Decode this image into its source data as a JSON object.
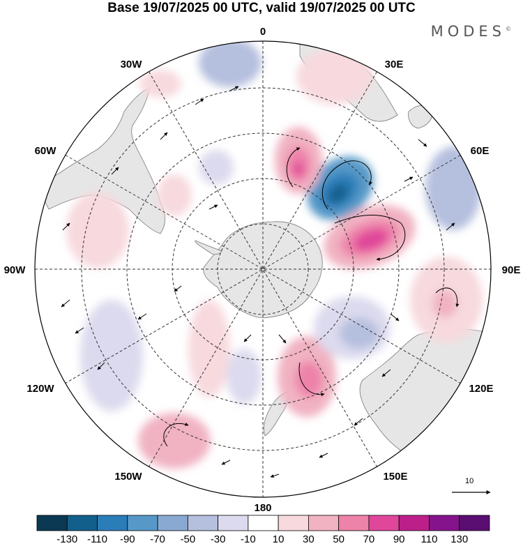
{
  "title": "Base 19/07/2025 00 UTC, valid 19/07/2025 00 UTC",
  "brand": "MODES",
  "brand_mark": "©",
  "longitude_labels": {
    "lon_0": "0",
    "lon_30e": "30E",
    "lon_60e": "60E",
    "lon_90e": "90E",
    "lon_120e": "120E",
    "lon_150e": "150E",
    "lon_180": "180",
    "lon_150w": "150W",
    "lon_120w": "120W",
    "lon_90w": "90W",
    "lon_60w": "60W",
    "lon_30w": "30W"
  },
  "reference_vector": {
    "label": "10",
    "value": 10
  },
  "colorbar": {
    "labels": [
      "-130",
      "-110",
      "-90",
      "-70",
      "-50",
      "-30",
      "-10",
      "10",
      "30",
      "50",
      "70",
      "90",
      "110",
      "130"
    ],
    "colors": [
      "#0b3954",
      "#135f8c",
      "#2b7db8",
      "#5699c8",
      "#8aa9d2",
      "#b5bfde",
      "#dcdaee",
      "#ffffff",
      "#f7d9de",
      "#f1b2c2",
      "#ee83aa",
      "#e0479a",
      "#bc1f8a",
      "#85138b",
      "#5a0e72"
    ]
  },
  "colors": {
    "land": "#e6e6e6",
    "coast": "#777777",
    "grid": "#333333"
  }
}
